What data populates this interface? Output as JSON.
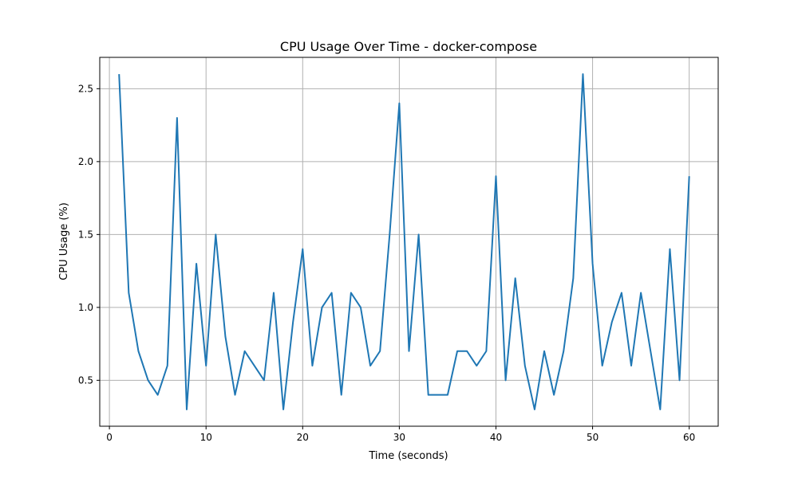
{
  "chart_data": {
    "type": "line",
    "title": "CPU Usage Over Time - docker-compose",
    "xlabel": "Time (seconds)",
    "ylabel": "CPU Usage (%)",
    "xlim": [
      -1,
      63
    ],
    "ylim": [
      0.185,
      2.715
    ],
    "x_ticks": [
      0,
      10,
      20,
      30,
      40,
      50,
      60
    ],
    "x_tick_labels": [
      "0",
      "10",
      "20",
      "30",
      "40",
      "50",
      "60"
    ],
    "y_ticks": [
      0.5,
      1.0,
      1.5,
      2.0,
      2.5
    ],
    "y_tick_labels": [
      "0.5",
      "1.0",
      "1.5",
      "2.0",
      "2.5"
    ],
    "grid": true,
    "line_color": "#1f77b4",
    "series": [
      {
        "name": "docker-compose",
        "x": [
          1,
          2,
          3,
          4,
          5,
          6,
          7,
          8,
          9,
          10,
          11,
          12,
          13,
          14,
          15,
          16,
          17,
          18,
          19,
          20,
          21,
          22,
          23,
          24,
          25,
          26,
          27,
          28,
          29,
          30,
          31,
          32,
          33,
          34,
          35,
          36,
          37,
          38,
          39,
          40,
          41,
          42,
          43,
          44,
          45,
          46,
          47,
          48,
          49,
          50,
          51,
          52,
          53,
          54,
          55,
          56,
          57,
          58,
          59,
          60
        ],
        "values": [
          2.6,
          1.1,
          0.7,
          0.5,
          0.4,
          0.6,
          2.3,
          0.3,
          1.3,
          0.6,
          1.5,
          0.8,
          0.4,
          0.7,
          0.6,
          0.5,
          1.1,
          0.3,
          0.9,
          1.4,
          0.6,
          1.0,
          1.1,
          0.4,
          1.1,
          1.0,
          0.6,
          0.7,
          1.5,
          2.4,
          0.7,
          1.5,
          0.4,
          0.4,
          0.4,
          0.7,
          0.7,
          0.6,
          0.7,
          1.9,
          0.5,
          1.2,
          0.6,
          0.3,
          0.7,
          0.4,
          0.7,
          1.2,
          2.6,
          1.3,
          0.6,
          0.9,
          1.1,
          0.6,
          1.1,
          0.7,
          0.3,
          1.4,
          0.5,
          1.9
        ]
      }
    ]
  }
}
